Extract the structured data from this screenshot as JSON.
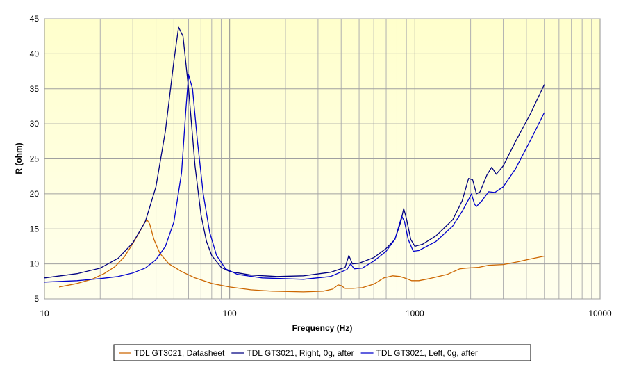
{
  "chart_data": {
    "type": "line",
    "title": "",
    "xlabel": "Frequency (Hz)",
    "ylabel": "R (ohm)",
    "xscale": "log",
    "xlim": [
      10,
      10000
    ],
    "ylim": [
      5,
      45
    ],
    "x_ticks": [
      "10",
      "100",
      "1000",
      "10000"
    ],
    "y_ticks": [
      "5",
      "10",
      "15",
      "20",
      "25",
      "30",
      "35",
      "40",
      "45"
    ],
    "grid": true,
    "legend_position": "bottom",
    "background": "#FFFFCC",
    "series": [
      {
        "name": "TDL GT3021, Datasheet",
        "color": "#CC6600",
        "points": [
          [
            12,
            6.7
          ],
          [
            15,
            7.2
          ],
          [
            18,
            7.8
          ],
          [
            21,
            8.6
          ],
          [
            24,
            9.6
          ],
          [
            27,
            11.0
          ],
          [
            30,
            12.9
          ],
          [
            33,
            14.8
          ],
          [
            35,
            16.1
          ],
          [
            36,
            16.2
          ],
          [
            37,
            15.7
          ],
          [
            39,
            13.5
          ],
          [
            42,
            11.5
          ],
          [
            47,
            10.0
          ],
          [
            55,
            8.9
          ],
          [
            65,
            8.0
          ],
          [
            80,
            7.2
          ],
          [
            100,
            6.7
          ],
          [
            130,
            6.3
          ],
          [
            170,
            6.1
          ],
          [
            250,
            6.0
          ],
          [
            320,
            6.1
          ],
          [
            360,
            6.4
          ],
          [
            385,
            7.0
          ],
          [
            400,
            6.9
          ],
          [
            420,
            6.5
          ],
          [
            460,
            6.5
          ],
          [
            520,
            6.6
          ],
          [
            600,
            7.1
          ],
          [
            680,
            8.0
          ],
          [
            760,
            8.3
          ],
          [
            830,
            8.2
          ],
          [
            900,
            7.9
          ],
          [
            960,
            7.6
          ],
          [
            1050,
            7.6
          ],
          [
            1200,
            7.9
          ],
          [
            1500,
            8.5
          ],
          [
            1750,
            9.3
          ],
          [
            1900,
            9.4
          ],
          [
            2200,
            9.5
          ],
          [
            2500,
            9.8
          ],
          [
            3000,
            9.9
          ],
          [
            3600,
            10.3
          ],
          [
            4200,
            10.7
          ],
          [
            5000,
            11.1
          ]
        ]
      },
      {
        "name": "TDL GT3021, Right, 0g, after",
        "color": "#000080",
        "points": [
          [
            10,
            8.0
          ],
          [
            15,
            8.6
          ],
          [
            20,
            9.4
          ],
          [
            25,
            10.8
          ],
          [
            30,
            13.0
          ],
          [
            35,
            16.0
          ],
          [
            40,
            21.0
          ],
          [
            45,
            29.0
          ],
          [
            50,
            39.0
          ],
          [
            53,
            43.8
          ],
          [
            56,
            42.5
          ],
          [
            60,
            35.0
          ],
          [
            65,
            24.0
          ],
          [
            70,
            17.0
          ],
          [
            75,
            13.2
          ],
          [
            80,
            11.2
          ],
          [
            90,
            9.5
          ],
          [
            100,
            8.9
          ],
          [
            130,
            8.4
          ],
          [
            180,
            8.2
          ],
          [
            250,
            8.3
          ],
          [
            350,
            8.8
          ],
          [
            420,
            9.5
          ],
          [
            440,
            11.2
          ],
          [
            460,
            10.0
          ],
          [
            500,
            10.1
          ],
          [
            600,
            10.9
          ],
          [
            700,
            12.2
          ],
          [
            780,
            13.5
          ],
          [
            840,
            16.0
          ],
          [
            870,
            17.9
          ],
          [
            900,
            16.5
          ],
          [
            950,
            13.5
          ],
          [
            1000,
            12.5
          ],
          [
            1100,
            12.8
          ],
          [
            1300,
            14.0
          ],
          [
            1600,
            16.3
          ],
          [
            1800,
            19.0
          ],
          [
            1950,
            22.2
          ],
          [
            2050,
            22.0
          ],
          [
            2150,
            20.0
          ],
          [
            2250,
            20.3
          ],
          [
            2450,
            22.7
          ],
          [
            2600,
            23.8
          ],
          [
            2750,
            22.8
          ],
          [
            3000,
            24.0
          ],
          [
            3500,
            27.5
          ],
          [
            4200,
            31.4
          ],
          [
            5000,
            35.6
          ]
        ]
      },
      {
        "name": "TDL GT3021, Left, 0g, after",
        "color": "#0000CC",
        "points": [
          [
            10,
            7.4
          ],
          [
            15,
            7.6
          ],
          [
            20,
            7.9
          ],
          [
            25,
            8.2
          ],
          [
            30,
            8.7
          ],
          [
            35,
            9.4
          ],
          [
            40,
            10.6
          ],
          [
            45,
            12.5
          ],
          [
            50,
            16.0
          ],
          [
            55,
            23.0
          ],
          [
            58,
            32.0
          ],
          [
            60,
            37.0
          ],
          [
            63,
            35.0
          ],
          [
            67,
            27.5
          ],
          [
            72,
            20.0
          ],
          [
            78,
            14.5
          ],
          [
            85,
            11.2
          ],
          [
            95,
            9.3
          ],
          [
            110,
            8.5
          ],
          [
            150,
            8.0
          ],
          [
            250,
            7.8
          ],
          [
            350,
            8.2
          ],
          [
            430,
            9.2
          ],
          [
            450,
            10.0
          ],
          [
            470,
            9.3
          ],
          [
            520,
            9.4
          ],
          [
            600,
            10.4
          ],
          [
            700,
            11.8
          ],
          [
            780,
            13.5
          ],
          [
            850,
            16.8
          ],
          [
            880,
            16.0
          ],
          [
            920,
            13.5
          ],
          [
            980,
            11.8
          ],
          [
            1050,
            11.9
          ],
          [
            1300,
            13.2
          ],
          [
            1600,
            15.4
          ],
          [
            1800,
            17.5
          ],
          [
            1950,
            19.2
          ],
          [
            2020,
            20.0
          ],
          [
            2100,
            18.5
          ],
          [
            2150,
            18.2
          ],
          [
            2300,
            19.0
          ],
          [
            2500,
            20.3
          ],
          [
            2700,
            20.2
          ],
          [
            3000,
            21.0
          ],
          [
            3500,
            23.6
          ],
          [
            4200,
            27.6
          ],
          [
            5000,
            31.6
          ]
        ]
      }
    ]
  }
}
